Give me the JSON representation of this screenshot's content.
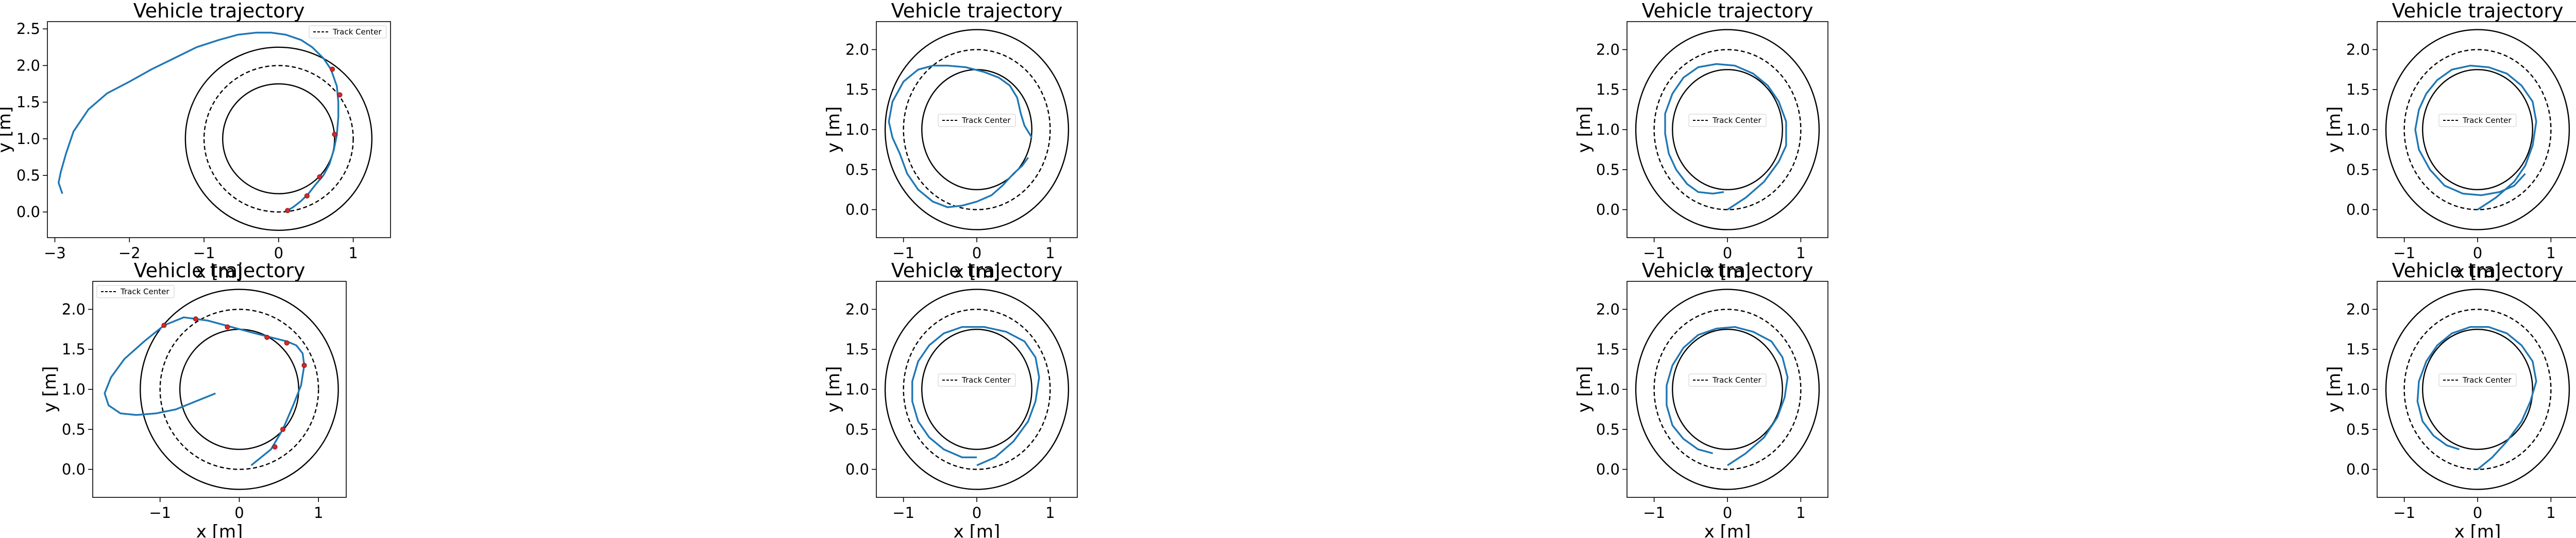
{
  "colors": {
    "trajectory": "#1f77b4",
    "track": "#000000",
    "marker": "#d62728"
  },
  "chart_data": [
    {
      "type": "line",
      "title": "Vehicle trajectory",
      "xlabel": "x [m]",
      "ylabel": "y [m]",
      "xlim": [
        -3.1,
        1.5
      ],
      "ylim": [
        -0.35,
        2.6
      ],
      "xticks": [
        -3,
        -2,
        -1,
        0,
        1
      ],
      "yticks": [
        0.0,
        0.5,
        1.0,
        1.5,
        2.0,
        2.5
      ],
      "legend": {
        "label": "Track Center",
        "placement": "upper right"
      },
      "track": {
        "center": [
          0,
          1
        ],
        "radii": [
          0.75,
          1.0,
          1.25
        ]
      },
      "series": [
        {
          "x": [
            -2.9,
            -2.95,
            -2.92,
            -2.85,
            -2.75,
            -2.55,
            -2.3,
            -2.0,
            -1.7,
            -1.4,
            -1.1,
            -0.8,
            -0.55,
            -0.3,
            -0.1,
            0.1,
            0.3,
            0.45,
            0.6,
            0.7,
            0.78,
            0.8,
            0.8,
            0.78,
            0.74,
            0.68,
            0.6,
            0.5,
            0.4,
            0.3,
            0.2,
            0.12
          ],
          "y": [
            0.25,
            0.4,
            0.55,
            0.8,
            1.1,
            1.4,
            1.62,
            1.78,
            1.95,
            2.1,
            2.25,
            2.35,
            2.42,
            2.45,
            2.45,
            2.42,
            2.35,
            2.25,
            2.1,
            1.95,
            1.72,
            1.5,
            1.3,
            1.05,
            0.85,
            0.65,
            0.5,
            0.38,
            0.25,
            0.15,
            0.07,
            0.02
          ]
        }
      ],
      "markers": {
        "x": [
          0.12,
          0.38,
          0.55,
          0.75,
          0.82,
          0.72
        ],
        "y": [
          0.02,
          0.22,
          0.48,
          1.06,
          1.6,
          1.95
        ]
      }
    },
    {
      "type": "line",
      "title": "Vehicle trajectory",
      "xlabel": "x [m]",
      "ylabel": "y [m]",
      "xlim": [
        -1.37,
        1.37
      ],
      "ylim": [
        -0.35,
        2.35
      ],
      "xticks": [
        -1,
        0,
        1
      ],
      "yticks": [
        0.0,
        0.5,
        1.0,
        1.5,
        2.0
      ],
      "legend": {
        "label": "Track Center",
        "placement": "center"
      },
      "track": {
        "center": [
          0,
          1
        ],
        "radii": [
          0.75,
          1.0,
          1.25
        ]
      },
      "series": [
        {
          "x": [
            0.7,
            0.62,
            0.5,
            0.35,
            0.2,
            0.0,
            -0.2,
            -0.4,
            -0.6,
            -0.8,
            -0.95,
            -1.05,
            -1.15,
            -1.2,
            -1.15,
            -1.0,
            -0.8,
            -0.6,
            -0.4,
            -0.15,
            0.1,
            0.3,
            0.45,
            0.55,
            0.6,
            0.65,
            0.75
          ],
          "y": [
            0.65,
            0.55,
            0.45,
            0.3,
            0.18,
            0.1,
            0.05,
            0.03,
            0.1,
            0.25,
            0.45,
            0.7,
            0.9,
            1.1,
            1.35,
            1.6,
            1.75,
            1.8,
            1.8,
            1.78,
            1.72,
            1.65,
            1.55,
            1.4,
            1.2,
            1.05,
            0.9
          ]
        }
      ]
    },
    {
      "type": "line",
      "title": "Vehicle trajectory",
      "xlabel": "x [m]",
      "ylabel": "y [m]",
      "xlim": [
        -1.37,
        1.37
      ],
      "ylim": [
        -0.35,
        2.35
      ],
      "xticks": [
        -1,
        0,
        1
      ],
      "yticks": [
        0.0,
        0.5,
        1.0,
        1.5,
        2.0
      ],
      "legend": {
        "label": "Track Center",
        "placement": "center"
      },
      "track": {
        "center": [
          0,
          1
        ],
        "radii": [
          0.75,
          1.0,
          1.25
        ]
      },
      "series": [
        {
          "x": [
            0.0,
            0.25,
            0.5,
            0.7,
            0.8,
            0.8,
            0.7,
            0.55,
            0.35,
            0.1,
            -0.15,
            -0.4,
            -0.6,
            -0.75,
            -0.85,
            -0.85,
            -0.8,
            -0.7,
            -0.55,
            -0.4,
            -0.2,
            -0.05
          ],
          "y": [
            0.0,
            0.15,
            0.35,
            0.6,
            0.8,
            1.1,
            1.35,
            1.55,
            1.7,
            1.8,
            1.82,
            1.78,
            1.65,
            1.45,
            1.2,
            0.95,
            0.7,
            0.5,
            0.32,
            0.22,
            0.2,
            0.22
          ]
        }
      ]
    },
    {
      "type": "line",
      "title": "Vehicle trajectory",
      "xlabel": "x [m]",
      "ylabel": "y [m]",
      "xlim": [
        -1.37,
        1.37
      ],
      "ylim": [
        -0.35,
        2.35
      ],
      "xticks": [
        -1,
        0,
        1
      ],
      "yticks": [
        0.0,
        0.5,
        1.0,
        1.5,
        2.0
      ],
      "legend": {
        "label": "Track Center",
        "placement": "center"
      },
      "track": {
        "center": [
          0,
          1
        ],
        "radii": [
          0.75,
          1.0,
          1.25
        ]
      },
      "series": [
        {
          "x": [
            0.0,
            0.25,
            0.5,
            0.65,
            0.75,
            0.8,
            0.75,
            0.6,
            0.4,
            0.15,
            -0.1,
            -0.35,
            -0.55,
            -0.7,
            -0.8,
            -0.85,
            -0.8,
            -0.65,
            -0.45,
            -0.2,
            0.05,
            0.3,
            0.5,
            0.65
          ],
          "y": [
            0.0,
            0.15,
            0.35,
            0.55,
            0.8,
            1.1,
            1.35,
            1.55,
            1.7,
            1.78,
            1.8,
            1.75,
            1.62,
            1.45,
            1.25,
            1.0,
            0.75,
            0.5,
            0.3,
            0.2,
            0.18,
            0.22,
            0.3,
            0.45
          ]
        }
      ]
    },
    {
      "type": "line",
      "title": "Vehicle trajectory",
      "xlabel": "x [m]",
      "ylabel": "y [m]",
      "xlim": [
        -1.85,
        1.35
      ],
      "ylim": [
        -0.35,
        2.35
      ],
      "xticks": [
        -1,
        0,
        1
      ],
      "yticks": [
        0.0,
        0.5,
        1.0,
        1.5,
        2.0
      ],
      "legend": {
        "label": "Track Center",
        "placement": "upper left"
      },
      "track": {
        "center": [
          0,
          1
        ],
        "radii": [
          0.75,
          1.0,
          1.25
        ]
      },
      "series": [
        {
          "x": [
            0.15,
            0.4,
            0.55,
            0.68,
            0.78,
            0.82,
            0.8,
            0.72,
            0.6,
            0.4,
            0.2,
            -0.1,
            -0.4,
            -0.7,
            -0.95,
            -1.2,
            -1.45,
            -1.62,
            -1.7,
            -1.65,
            -1.5,
            -1.3,
            -1.05,
            -0.8,
            -0.55,
            -0.3
          ],
          "y": [
            0.05,
            0.25,
            0.5,
            0.8,
            1.05,
            1.3,
            1.45,
            1.55,
            1.6,
            1.65,
            1.7,
            1.78,
            1.86,
            1.9,
            1.8,
            1.6,
            1.38,
            1.15,
            0.95,
            0.8,
            0.7,
            0.68,
            0.7,
            0.75,
            0.85,
            0.95
          ]
        }
      ],
      "markers": {
        "x": [
          0.55,
          0.45,
          0.82,
          0.6,
          0.35,
          -0.15,
          -0.55,
          -0.95
        ],
        "y": [
          0.5,
          0.28,
          1.3,
          1.58,
          1.65,
          1.78,
          1.88,
          1.8
        ]
      }
    },
    {
      "type": "line",
      "title": "Vehicle trajectory",
      "xlabel": "x [m]",
      "ylabel": "y [m]",
      "xlim": [
        -1.37,
        1.37
      ],
      "ylim": [
        -0.35,
        2.35
      ],
      "xticks": [
        -1,
        0,
        1
      ],
      "yticks": [
        0.0,
        0.5,
        1.0,
        1.5,
        2.0
      ],
      "legend": {
        "label": "Track Center",
        "placement": "center"
      },
      "track": {
        "center": [
          0,
          1
        ],
        "radii": [
          0.75,
          1.0,
          1.25
        ]
      },
      "series": [
        {
          "x": [
            0.0,
            0.25,
            0.5,
            0.7,
            0.8,
            0.85,
            0.8,
            0.65,
            0.4,
            0.1,
            -0.2,
            -0.45,
            -0.65,
            -0.8,
            -0.88,
            -0.88,
            -0.8,
            -0.65,
            -0.45,
            -0.2,
            0.0
          ],
          "y": [
            0.05,
            0.15,
            0.35,
            0.6,
            0.85,
            1.15,
            1.4,
            1.6,
            1.72,
            1.78,
            1.78,
            1.7,
            1.55,
            1.35,
            1.1,
            0.85,
            0.6,
            0.4,
            0.25,
            0.15,
            0.15
          ]
        }
      ]
    },
    {
      "type": "line",
      "title": "Vehicle trajectory",
      "xlabel": "x [m]",
      "ylabel": "y [m]",
      "xlim": [
        -1.37,
        1.37
      ],
      "ylim": [
        -0.35,
        2.35
      ],
      "xticks": [
        -1,
        0,
        1
      ],
      "yticks": [
        0.0,
        0.5,
        1.0,
        1.5,
        2.0
      ],
      "legend": {
        "label": "Track Center",
        "placement": "center"
      },
      "track": {
        "center": [
          0,
          1
        ],
        "radii": [
          0.75,
          1.0,
          1.25
        ]
      },
      "series": [
        {
          "x": [
            0.0,
            0.25,
            0.5,
            0.68,
            0.78,
            0.82,
            0.75,
            0.6,
            0.35,
            0.1,
            -0.15,
            -0.4,
            -0.6,
            -0.75,
            -0.83,
            -0.83,
            -0.75,
            -0.6,
            -0.4,
            -0.2
          ],
          "y": [
            0.05,
            0.2,
            0.4,
            0.65,
            0.9,
            1.15,
            1.4,
            1.6,
            1.72,
            1.78,
            1.76,
            1.68,
            1.52,
            1.3,
            1.05,
            0.8,
            0.55,
            0.38,
            0.25,
            0.2
          ]
        }
      ]
    },
    {
      "type": "line",
      "title": "Vehicle trajectory",
      "xlabel": "x [m]",
      "ylabel": "y [m]",
      "xlim": [
        -1.37,
        1.37
      ],
      "ylim": [
        -0.35,
        2.35
      ],
      "xticks": [
        -1,
        0,
        1
      ],
      "yticks": [
        0.0,
        0.5,
        1.0,
        1.5,
        2.0
      ],
      "legend": {
        "label": "Track Center",
        "placement": "center"
      },
      "track": {
        "center": [
          0,
          1
        ],
        "radii": [
          0.75,
          1.0,
          1.25
        ]
      },
      "series": [
        {
          "x": [
            0.0,
            0.2,
            0.4,
            0.6,
            0.72,
            0.8,
            0.75,
            0.6,
            0.4,
            0.15,
            -0.1,
            -0.35,
            -0.55,
            -0.7,
            -0.8,
            -0.82,
            -0.75,
            -0.6,
            -0.42,
            -0.25
          ],
          "y": [
            0.0,
            0.15,
            0.35,
            0.6,
            0.85,
            1.1,
            1.35,
            1.55,
            1.7,
            1.78,
            1.78,
            1.7,
            1.55,
            1.35,
            1.1,
            0.85,
            0.6,
            0.42,
            0.3,
            0.25
          ]
        }
      ]
    }
  ]
}
